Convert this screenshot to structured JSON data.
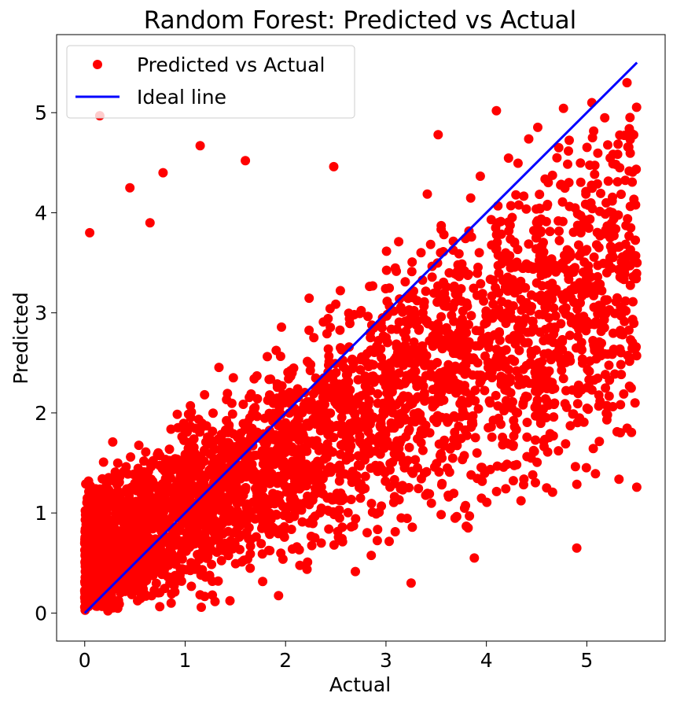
{
  "chart_data": {
    "type": "scatter",
    "title": "Random Forest: Predicted vs Actual",
    "xlabel": "Actual",
    "ylabel": "Predicted",
    "xlim": [
      -0.28,
      5.78
    ],
    "ylim": [
      -0.28,
      5.78
    ],
    "xticks": [
      "0",
      "1",
      "2",
      "3",
      "4",
      "5"
    ],
    "yticks": [
      "0",
      "1",
      "2",
      "3",
      "4",
      "5"
    ],
    "grid": false,
    "legend_position": "top-left",
    "series": [
      {
        "name": "Predicted vs Actual",
        "kind": "scatter",
        "color": "#ff0000",
        "x": [
          0.1,
          0.2,
          0.35,
          0.5,
          0.75,
          1.0,
          1.2,
          1.4,
          1.6,
          1.8,
          2.0,
          2.2,
          2.4,
          2.6,
          2.8,
          3.0,
          3.2,
          3.4,
          3.6,
          3.8,
          4.0,
          4.2,
          4.4,
          4.6,
          4.8,
          5.0,
          5.2,
          5.5,
          0.15,
          0.78,
          1.15,
          2.48,
          3.88,
          4.1,
          3.25,
          4.9,
          5.4,
          5.05,
          0.05,
          0.45,
          0.65,
          1.6,
          3.52,
          4.6,
          5.48
        ],
        "y": [
          1.0,
          1.15,
          0.8,
          1.1,
          1.2,
          1.4,
          1.35,
          1.6,
          1.5,
          1.7,
          1.9,
          2.1,
          2.0,
          2.2,
          2.3,
          2.4,
          2.6,
          2.5,
          2.7,
          2.8,
          2.9,
          3.0,
          3.1,
          3.1,
          3.2,
          3.3,
          3.4,
          3.5,
          4.97,
          4.4,
          4.67,
          4.46,
          0.55,
          5.02,
          0.3,
          0.65,
          5.3,
          5.1,
          3.8,
          4.25,
          3.9,
          4.52,
          4.78,
          1.25,
          2.1
        ]
      },
      {
        "name": "Ideal line",
        "kind": "line",
        "color": "#0000ff",
        "x": [
          0,
          5.5
        ],
        "y": [
          0,
          5.5
        ]
      }
    ]
  }
}
